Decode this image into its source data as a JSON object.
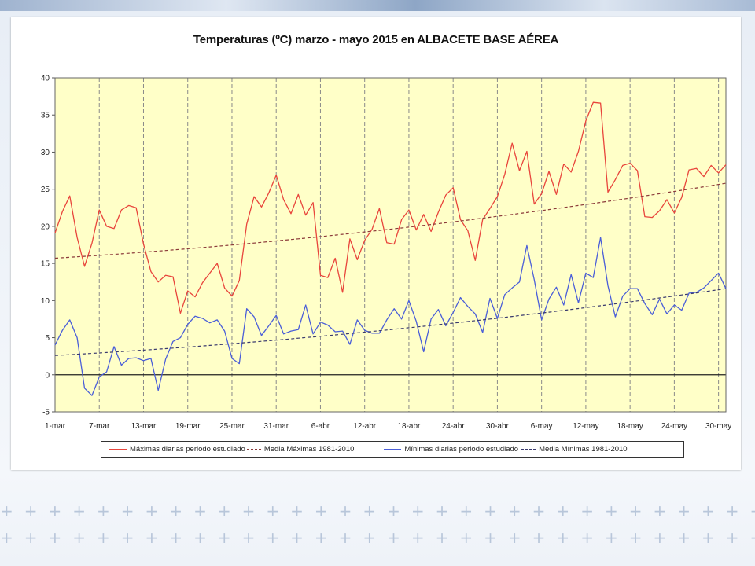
{
  "chart_data": {
    "type": "line",
    "title": "Temperaturas (ºC) marzo - mayo 2015 en ALBACETE BASE AÉREA",
    "xlabel": "",
    "ylabel": "",
    "ylim": [
      -5,
      40
    ],
    "yticks": [
      40,
      35,
      30,
      25,
      20,
      15,
      10,
      5,
      0,
      -5
    ],
    "xtick_labels": [
      "1-mar",
      "7-mar",
      "13-mar",
      "19-mar",
      "25-mar",
      "31-mar",
      "6-abr",
      "12-abr",
      "18-abr",
      "24-abr",
      "30-abr",
      "6-may",
      "12-may",
      "18-may",
      "24-may",
      "30-may"
    ],
    "n_days": 92,
    "background": "#ffffc8",
    "grid": "dashed vertical",
    "legend_placement": "bottom",
    "series": [
      {
        "name": "Máximas diarias periodo estudiado",
        "color": "#e8453c",
        "style": "solid",
        "values": [
          19.1,
          22,
          24.1,
          18.5,
          14.6,
          17.7,
          22.2,
          20,
          19.7,
          22.2,
          22.8,
          22.5,
          17.6,
          13.9,
          12.5,
          13.4,
          13.2,
          8.3,
          11.3,
          10.5,
          12.4,
          13.7,
          15,
          11.7,
          10.6,
          12.7,
          20.3,
          24,
          22.6,
          24.5,
          26.9,
          23.6,
          21.7,
          24.3,
          21.5,
          23.2,
          13.4,
          13.1,
          15.7,
          11.1,
          18.3,
          15.5,
          18.1,
          19.6,
          22.4,
          17.8,
          17.6,
          20.9,
          22.2,
          19.5,
          21.6,
          19.3,
          21.9,
          24.2,
          25.2,
          20.9,
          19.4,
          15.4,
          20.9,
          22.4,
          24,
          27,
          31.2,
          27.5,
          30.1,
          23,
          24.4,
          27.4,
          24.3,
          28.4,
          27.3,
          30.1,
          34.2,
          36.7,
          36.6,
          24.6,
          26.3,
          28.2,
          28.5,
          27.5,
          21.3,
          21.2,
          22.1,
          23.6,
          21.8,
          23.9,
          27.6,
          27.8,
          26.7,
          28.2,
          27.2,
          28.3
        ]
      },
      {
        "name": "Media Máximas 1981-2010",
        "color": "#8b3a3a",
        "style": "dashed",
        "values_start_end": [
          15.7,
          25.8
        ]
      },
      {
        "name": "Mínimas diarias periodo estudiado",
        "color": "#4a5ed8",
        "style": "solid",
        "values": [
          4,
          6,
          7.4,
          5,
          -1.8,
          -2.8,
          -0.3,
          0.4,
          3.8,
          1.3,
          2.2,
          2.3,
          1.9,
          2.2,
          -2.1,
          2.1,
          4.5,
          5,
          6.8,
          7.9,
          7.6,
          7,
          7.4,
          5.9,
          2.2,
          1.5,
          8.9,
          7.8,
          5.3,
          6.6,
          8,
          5.5,
          5.9,
          6.1,
          9.4,
          5.5,
          7.1,
          6.7,
          5.8,
          5.9,
          4.1,
          7.4,
          6,
          5.6,
          5.6,
          7.4,
          8.9,
          7.5,
          10,
          7.2,
          3.1,
          7.5,
          8.8,
          6.6,
          8.4,
          10.4,
          9.2,
          8.2,
          5.7,
          10.3,
          7.6,
          10.8,
          11.7,
          12.5,
          17.4,
          12.8,
          7.4,
          10.2,
          11.8,
          9.4,
          13.5,
          9.7,
          13.7,
          13.1,
          18.5,
          12,
          7.8,
          10.6,
          11.6,
          11.6,
          9.6,
          8.1,
          10.2,
          8.2,
          9.4,
          8.7,
          11,
          11.1,
          11.7,
          12.7,
          13.7,
          11.6
        ]
      },
      {
        "name": "Media Mínimas 1981-2010",
        "color": "#3a3a6e",
        "style": "dashed",
        "values_start_end": [
          2.6,
          11.6
        ]
      }
    ]
  },
  "legend": {
    "item1": "Máximas diarias periodo estudiado",
    "item2": "Media Máximas 1981-2010",
    "item3": "Mínimas diarias periodo estudiado",
    "item4": "Media Mínimas 1981-2010"
  }
}
